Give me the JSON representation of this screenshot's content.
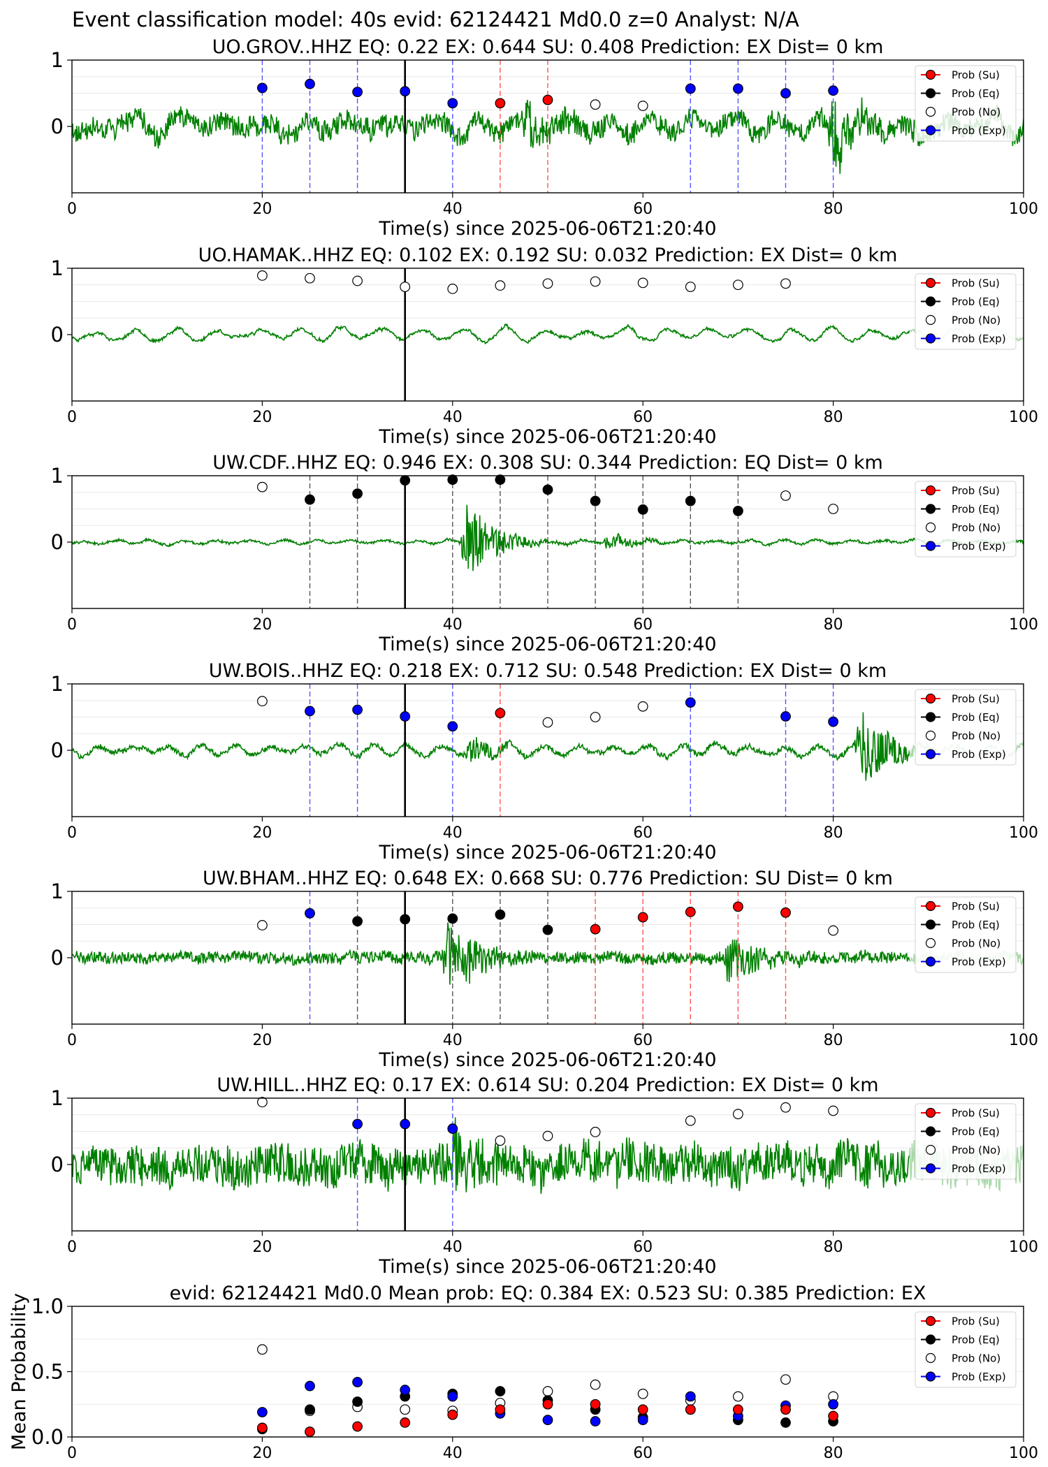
{
  "figure": {
    "suptitle": "Event classification model: 40s evid: 62124421 Md0.0 z=0 Analyst: N/A"
  },
  "colors": {
    "waveform": "#008000",
    "Su": "#ff0000",
    "Eq": "#000000",
    "No": "#ffffff",
    "Exp": "#0000ff"
  },
  "legend": [
    "Prob (Su)",
    "Prob (Eq)",
    "Prob (No)",
    "Prob (Exp)"
  ],
  "chart_data": [
    {
      "type": "line",
      "station": "UO.GROV..HHZ",
      "title": "UO.GROV..HHZ   EQ: 0.22  EX: 0.644  SU: 0.408   Prediction: EX    Dist= 0 km",
      "xlabel": "Time(s) since 2025-06-06T21:20:40",
      "xlim": [
        0,
        100
      ],
      "ylim": [
        -1,
        1
      ],
      "yticks": [
        "0",
        "1"
      ],
      "xticks": [
        "0",
        "20",
        "40",
        "60",
        "80",
        "100"
      ],
      "origin_time": 35,
      "waveform": {
        "amp": 0.3,
        "hf": 0.5,
        "lf": 0.4,
        "period": 4.5,
        "seed": 11,
        "bursts": [
          [
            48,
            0.25
          ],
          [
            80,
            0.55
          ]
        ],
        "fade_from": 100
      },
      "points": [
        {
          "t": 20,
          "p": 0.58,
          "c": "Exp",
          "line": true
        },
        {
          "t": 25,
          "p": 0.64,
          "c": "Exp",
          "line": true
        },
        {
          "t": 30,
          "p": 0.52,
          "c": "Exp",
          "line": true
        },
        {
          "t": 35,
          "p": 0.53,
          "c": "Exp",
          "line": false
        },
        {
          "t": 40,
          "p": 0.35,
          "c": "Exp",
          "line": true
        },
        {
          "t": 45,
          "p": 0.35,
          "c": "Su",
          "line": true
        },
        {
          "t": 50,
          "p": 0.4,
          "c": "Su",
          "line": true
        },
        {
          "t": 55,
          "p": 0.33,
          "c": "No",
          "line": false
        },
        {
          "t": 60,
          "p": 0.31,
          "c": "No",
          "line": false
        },
        {
          "t": 65,
          "p": 0.57,
          "c": "Exp",
          "line": true
        },
        {
          "t": 70,
          "p": 0.57,
          "c": "Exp",
          "line": true
        },
        {
          "t": 75,
          "p": 0.5,
          "c": "Exp",
          "line": true
        },
        {
          "t": 80,
          "p": 0.54,
          "c": "Exp",
          "line": true
        }
      ]
    },
    {
      "type": "line",
      "station": "UO.HAMAK..HHZ",
      "title": "UO.HAMAK..HHZ   EQ: 0.102  EX: 0.192  SU: 0.032   Prediction: EX    Dist= 0 km",
      "xlabel": "Time(s) since 2025-06-06T21:20:40",
      "xlim": [
        0,
        100
      ],
      "ylim": [
        -1,
        1
      ],
      "yticks": [
        "0",
        "1"
      ],
      "xticks": [
        "0",
        "20",
        "40",
        "60",
        "80",
        "100"
      ],
      "origin_time": 35,
      "waveform": {
        "amp": 0.12,
        "hf": 0.15,
        "lf": 0.85,
        "period": 4.3,
        "seed": 23,
        "bursts": [],
        "fade_from": 88
      },
      "points": [
        {
          "t": 20,
          "p": 0.89,
          "c": "No",
          "line": false
        },
        {
          "t": 25,
          "p": 0.85,
          "c": "No",
          "line": false
        },
        {
          "t": 30,
          "p": 0.81,
          "c": "No",
          "line": false
        },
        {
          "t": 35,
          "p": 0.72,
          "c": "No",
          "line": false
        },
        {
          "t": 40,
          "p": 0.69,
          "c": "No",
          "line": false
        },
        {
          "t": 45,
          "p": 0.74,
          "c": "No",
          "line": false
        },
        {
          "t": 50,
          "p": 0.77,
          "c": "No",
          "line": false
        },
        {
          "t": 55,
          "p": 0.8,
          "c": "No",
          "line": false
        },
        {
          "t": 60,
          "p": 0.78,
          "c": "No",
          "line": false
        },
        {
          "t": 65,
          "p": 0.72,
          "c": "No",
          "line": false
        },
        {
          "t": 70,
          "p": 0.75,
          "c": "No",
          "line": false
        },
        {
          "t": 75,
          "p": 0.77,
          "c": "No",
          "line": false
        }
      ]
    },
    {
      "type": "line",
      "station": "UW.CDF..HHZ",
      "title": "UW.CDF..HHZ   EQ: 0.946  EX: 0.308  SU: 0.344   Prediction: EQ    Dist= 0 km",
      "xlabel": "Time(s) since 2025-06-06T21:20:40",
      "xlim": [
        0,
        100
      ],
      "ylim": [
        -1,
        1
      ],
      "yticks": [
        "0",
        "1"
      ],
      "xticks": [
        "0",
        "20",
        "40",
        "60",
        "80",
        "100"
      ],
      "origin_time": 35,
      "waveform": {
        "amp": 0.05,
        "hf": 0.35,
        "lf": 0.65,
        "period": 3.5,
        "seed": 37,
        "bursts": [
          [
            41.5,
            0.6
          ],
          [
            56.5,
            0.12
          ]
        ],
        "fade_from": 100
      },
      "points": [
        {
          "t": 20,
          "p": 0.83,
          "c": "No",
          "line": false
        },
        {
          "t": 25,
          "p": 0.64,
          "c": "Eq",
          "line": true
        },
        {
          "t": 30,
          "p": 0.73,
          "c": "Eq",
          "line": true
        },
        {
          "t": 35,
          "p": 0.93,
          "c": "Eq",
          "line": false
        },
        {
          "t": 40,
          "p": 0.94,
          "c": "Eq",
          "line": true
        },
        {
          "t": 45,
          "p": 0.94,
          "c": "Eq",
          "line": true
        },
        {
          "t": 50,
          "p": 0.79,
          "c": "Eq",
          "line": true
        },
        {
          "t": 55,
          "p": 0.62,
          "c": "Eq",
          "line": true
        },
        {
          "t": 60,
          "p": 0.49,
          "c": "Eq",
          "line": true
        },
        {
          "t": 65,
          "p": 0.62,
          "c": "Eq",
          "line": true
        },
        {
          "t": 70,
          "p": 0.47,
          "c": "Eq",
          "line": true
        },
        {
          "t": 75,
          "p": 0.7,
          "c": "No",
          "line": false
        },
        {
          "t": 80,
          "p": 0.5,
          "c": "No",
          "line": false
        }
      ]
    },
    {
      "type": "line",
      "station": "UW.BOIS..HHZ",
      "title": "UW.BOIS..HHZ   EQ: 0.218  EX: 0.712  SU: 0.548   Prediction: EX    Dist= 0 km",
      "xlabel": "Time(s) since 2025-06-06T21:20:40",
      "xlim": [
        0,
        100
      ],
      "ylim": [
        -1,
        1
      ],
      "yticks": [
        "0",
        "1"
      ],
      "xticks": [
        "0",
        "20",
        "40",
        "60",
        "80",
        "100"
      ],
      "origin_time": 35,
      "waveform": {
        "amp": 0.12,
        "hf": 0.3,
        "lf": 0.7,
        "period": 3.6,
        "seed": 53,
        "bursts": [
          [
            42,
            0.18
          ],
          [
            83,
            0.6
          ]
        ],
        "fade_from": 88
      },
      "points": [
        {
          "t": 20,
          "p": 0.74,
          "c": "No",
          "line": false
        },
        {
          "t": 25,
          "p": 0.59,
          "c": "Exp",
          "line": true
        },
        {
          "t": 30,
          "p": 0.61,
          "c": "Exp",
          "line": true
        },
        {
          "t": 35,
          "p": 0.51,
          "c": "Exp",
          "line": false
        },
        {
          "t": 40,
          "p": 0.36,
          "c": "Exp",
          "line": true
        },
        {
          "t": 45,
          "p": 0.56,
          "c": "Su",
          "line": true
        },
        {
          "t": 50,
          "p": 0.42,
          "c": "No",
          "line": false
        },
        {
          "t": 55,
          "p": 0.5,
          "c": "No",
          "line": false
        },
        {
          "t": 60,
          "p": 0.66,
          "c": "No",
          "line": false
        },
        {
          "t": 65,
          "p": 0.72,
          "c": "Exp",
          "line": true
        },
        {
          "t": 75,
          "p": 0.51,
          "c": "Exp",
          "line": true
        },
        {
          "t": 80,
          "p": 0.43,
          "c": "Exp",
          "line": true
        }
      ]
    },
    {
      "type": "line",
      "station": "UW.BHAM..HHZ",
      "title": "UW.BHAM..HHZ   EQ: 0.648  EX: 0.668  SU: 0.776   Prediction: SU    Dist= 0 km",
      "xlabel": "Time(s) since 2025-06-06T21:20:40",
      "xlim": [
        0,
        100
      ],
      "ylim": [
        -1,
        1
      ],
      "yticks": [
        "0",
        "1"
      ],
      "xticks": [
        "0",
        "20",
        "40",
        "60",
        "80",
        "100"
      ],
      "origin_time": 35,
      "waveform": {
        "amp": 0.1,
        "hf": 0.85,
        "lf": 0.15,
        "period": 3.0,
        "seed": 71,
        "bursts": [
          [
            39.5,
            0.7
          ],
          [
            69,
            0.45
          ]
        ],
        "fade_from": 88
      },
      "points": [
        {
          "t": 20,
          "p": 0.49,
          "c": "No",
          "line": false
        },
        {
          "t": 25,
          "p": 0.67,
          "c": "Exp",
          "line": true
        },
        {
          "t": 30,
          "p": 0.55,
          "c": "Eq",
          "line": true
        },
        {
          "t": 35,
          "p": 0.58,
          "c": "Eq",
          "line": false
        },
        {
          "t": 40,
          "p": 0.59,
          "c": "Eq",
          "line": true
        },
        {
          "t": 45,
          "p": 0.65,
          "c": "Eq",
          "line": true
        },
        {
          "t": 50,
          "p": 0.42,
          "c": "Eq",
          "line": true
        },
        {
          "t": 55,
          "p": 0.43,
          "c": "Su",
          "line": true
        },
        {
          "t": 60,
          "p": 0.61,
          "c": "Su",
          "line": true
        },
        {
          "t": 65,
          "p": 0.69,
          "c": "Su",
          "line": true
        },
        {
          "t": 70,
          "p": 0.77,
          "c": "Su",
          "line": true
        },
        {
          "t": 75,
          "p": 0.68,
          "c": "Su",
          "line": true
        },
        {
          "t": 80,
          "p": 0.41,
          "c": "No",
          "line": false
        }
      ]
    },
    {
      "type": "line",
      "station": "UW.HILL..HHZ",
      "title": "UW.HILL..HHZ   EQ: 0.17  EX: 0.614  SU: 0.204   Prediction: EX    Dist= 0 km",
      "xlabel": "Time(s) since 2025-06-06T21:20:40",
      "xlim": [
        0,
        100
      ],
      "ylim": [
        -1,
        1
      ],
      "yticks": [
        "0",
        "1"
      ],
      "xticks": [
        "0",
        "20",
        "40",
        "60",
        "80",
        "100"
      ],
      "origin_time": 35,
      "waveform": {
        "amp": 0.32,
        "hf": 0.95,
        "lf": 0.05,
        "period": 2.0,
        "seed": 89,
        "bursts": [
          [
            40,
            0.45
          ],
          [
            80,
            0.25
          ]
        ],
        "fade_from": 88
      },
      "points": [
        {
          "t": 20,
          "p": 0.94,
          "c": "No",
          "line": false
        },
        {
          "t": 30,
          "p": 0.61,
          "c": "Exp",
          "line": true
        },
        {
          "t": 35,
          "p": 0.61,
          "c": "Exp",
          "line": false
        },
        {
          "t": 40,
          "p": 0.54,
          "c": "Exp",
          "line": true
        },
        {
          "t": 45,
          "p": 0.36,
          "c": "No",
          "line": false
        },
        {
          "t": 50,
          "p": 0.43,
          "c": "No",
          "line": false
        },
        {
          "t": 55,
          "p": 0.49,
          "c": "No",
          "line": false
        },
        {
          "t": 65,
          "p": 0.66,
          "c": "No",
          "line": false
        },
        {
          "t": 70,
          "p": 0.76,
          "c": "No",
          "line": false
        },
        {
          "t": 75,
          "p": 0.86,
          "c": "No",
          "line": false
        },
        {
          "t": 80,
          "p": 0.81,
          "c": "No",
          "line": false
        }
      ]
    },
    {
      "type": "scatter",
      "title": "evid: 62124421  Md0.0   Mean prob:   EQ: 0.384  EX: 0.523  SU: 0.385   Prediction: EX",
      "ylabel": "Mean Probability",
      "xlim": [
        0,
        100
      ],
      "ylim": [
        0,
        1
      ],
      "yticks": [
        "0.0",
        "0.5",
        "1.0"
      ],
      "xticks": [
        "0",
        "20",
        "40",
        "60",
        "80",
        "100"
      ],
      "x": [
        20,
        25,
        30,
        35,
        40,
        45,
        50,
        55,
        60,
        65,
        70,
        75,
        80
      ],
      "series": [
        {
          "name": "Prob (No)",
          "c": "No",
          "values": [
            0.67,
            0.2,
            0.23,
            0.21,
            0.2,
            0.26,
            0.35,
            0.4,
            0.33,
            0.28,
            0.31,
            0.44,
            0.31
          ]
        },
        {
          "name": "Prob (Eq)",
          "c": "Eq",
          "values": [
            0.06,
            0.21,
            0.27,
            0.31,
            0.33,
            0.35,
            0.28,
            0.21,
            0.15,
            0.21,
            0.13,
            0.11,
            0.12
          ]
        },
        {
          "name": "Prob (Exp)",
          "c": "Exp",
          "values": [
            0.19,
            0.39,
            0.42,
            0.36,
            0.31,
            0.18,
            0.13,
            0.12,
            0.13,
            0.31,
            0.16,
            0.24,
            0.25
          ]
        },
        {
          "name": "Prob (Su)",
          "c": "Su",
          "values": [
            0.07,
            0.04,
            0.08,
            0.11,
            0.17,
            0.21,
            0.25,
            0.25,
            0.21,
            0.21,
            0.21,
            0.21,
            0.16
          ]
        }
      ]
    }
  ]
}
